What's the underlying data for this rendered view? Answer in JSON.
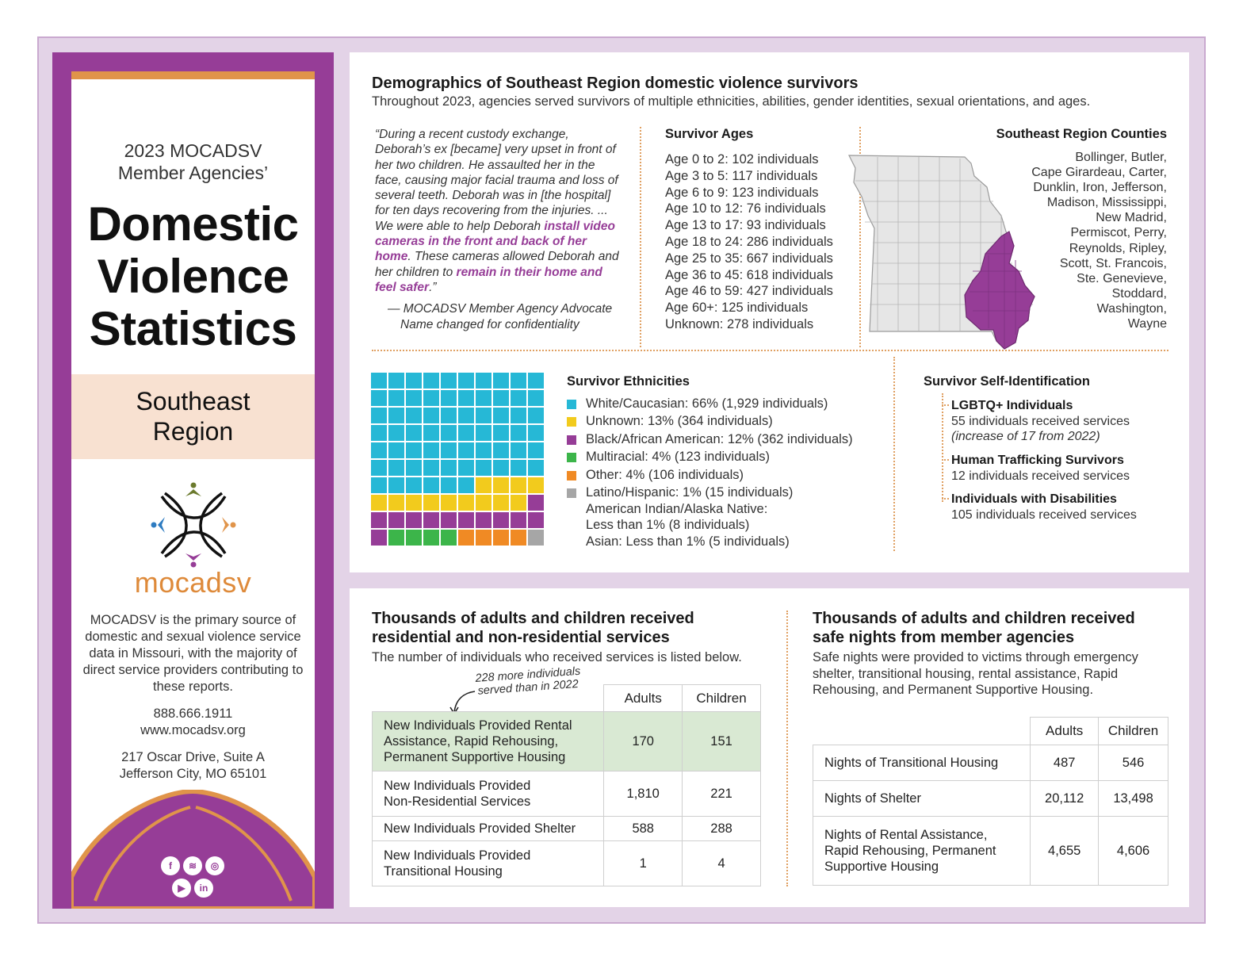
{
  "sidebar": {
    "subtitle_line1": "2023 MOCADSV",
    "subtitle_line2": "Member Agencies’",
    "title_line1": "Domestic",
    "title_line2": "Violence",
    "title_line3": "Statistics",
    "region_line1": "Southeast",
    "region_line2": "Region",
    "logo_text": "mocadsv",
    "description": "MOCADSV is the primary source of domestic and sexual violence service data in Missouri, with the majority of direct service providers contributing to these reports.",
    "phone": "888.666.1911",
    "website": "www.mocadsv.org",
    "address_line1": "217 Oscar Drive, Suite A",
    "address_line2": "Jefferson City, MO 65101",
    "social_icons": [
      "facebook-icon",
      "spotify-icon",
      "instagram-icon",
      "youtube-icon",
      "linkedin-icon"
    ],
    "colors": {
      "purple": "#963d97",
      "orange": "#e0944a",
      "peach": "#f8e1d1"
    }
  },
  "demographics": {
    "title": "Demographics of Southeast Region domestic violence survivors",
    "subtitle": "Throughout 2023, agencies served survivors of multiple ethnicities, abilities, gender identities, sexual orientations, and ages.",
    "quote": {
      "part1": "“During a recent custody exchange, Deborah’s ex [became] very upset in front of her two children. He assaulted her in the face, causing major facial trauma and loss of several teeth. Deborah was in [the hospital] for ten days recovering from the injuries. ... We were able to help Deborah ",
      "highlight1": "install video cameras in the front and back of her home",
      "part2": ". These cameras allowed Deborah and her children to ",
      "highlight2": "remain in their home and feel safer",
      "part3": ".”",
      "attribution_line1": "— MOCADSV Member Agency Advocate",
      "attribution_line2": "Name changed for confidentiality"
    },
    "ages": {
      "title": "Survivor Ages",
      "items": [
        "Age 0 to 2: 102 individuals",
        "Age 3 to 5: 117 individuals",
        "Age 6 to 9: 123 individuals",
        "Age 10 to 12: 76 individuals",
        "Age 13 to 17: 93 individuals",
        "Age 18 to 24: 286 individuals",
        "Age 25 to 35: 667 individuals",
        "Age 36 to 45: 618 individuals",
        "Age 46 to 59: 427 individuals",
        "Age 60+: 125 individuals",
        "Unknown: 278 individuals"
      ]
    },
    "counties": {
      "title": "Southeast Region Counties",
      "lines": [
        "Bollinger, Butler,",
        "Cape Girardeau, Carter,",
        "Dunklin, Iron, Jefferson,",
        "Madison, Mississippi,",
        "New Madrid,",
        "Permiscot, Perry,",
        "Reynolds, Ripley,",
        "Scott, St. Francois,",
        "Ste. Genevieve,",
        "Stoddard,",
        "Washington,",
        "Wayne"
      ]
    },
    "ethnicities": {
      "title": "Survivor Ethnicities",
      "items": [
        {
          "label": "White/Caucasian: 66% (1,929 individuals)",
          "color": "#26b8d6",
          "squares": 66
        },
        {
          "label": "Unknown: 13% (364 individuals)",
          "color": "#f2cb1d",
          "squares": 13
        },
        {
          "label": "Black/African American: 12% (362 individuals)",
          "color": "#963d97",
          "squares": 12
        },
        {
          "label": "Multiracial: 4% (123 individuals)",
          "color": "#3cb54a",
          "squares": 4
        },
        {
          "label": "Other: 4% (106 individuals)",
          "color": "#f08a24",
          "squares": 4
        },
        {
          "label": "Latino/Hispanic: 1% (15 individuals)",
          "color": "#a6a6a6",
          "squares": 1
        }
      ],
      "extra_line1": "American Indian/Alaska Native:",
      "extra_line2": "Less than 1% (8 individuals)",
      "extra_line3": "Asian: Less than 1% (5 individuals)"
    },
    "self_identification": {
      "title": "Survivor Self-Identification",
      "items": [
        {
          "title": "LGBTQ+ Individuals",
          "detail": "55 individuals received services",
          "note": "(increase of 17 from 2022)"
        },
        {
          "title": "Human Trafficking Survivors",
          "detail": "12 individuals received services"
        },
        {
          "title": "Individuals with Disabilities",
          "detail": "105 individuals received services"
        }
      ]
    }
  },
  "services": {
    "title_line1": "Thousands of adults and children received",
    "title_line2": "residential and non-residential services",
    "subtitle": "The number of individuals who received services is listed below.",
    "note_line1": "228 more individuals",
    "note_line2": "served than in 2022",
    "col_adults": "Adults",
    "col_children": "Children",
    "rows": [
      {
        "label_line1": "New Individuals Provided Rental",
        "label_line2": "Assistance, Rapid Rehousing,",
        "label_line3": "Permanent Supportive Housing",
        "adults": "170",
        "children": "151"
      },
      {
        "label_line1": "New Individuals Provided",
        "label_line2": "Non-Residential Services",
        "adults": "1,810",
        "children": "221"
      },
      {
        "label_line1": "New Individuals Provided Shelter",
        "adults": "588",
        "children": "288"
      },
      {
        "label_line1": "New Individuals Provided",
        "label_line2": "Transitional Housing",
        "adults": "1",
        "children": "4"
      }
    ]
  },
  "safe_nights": {
    "title_line1": "Thousands of adults and children received",
    "title_line2": "safe nights from member agencies",
    "subtitle_line1": "Safe nights were provided to victims through emergency",
    "subtitle_line2": "shelter, transitional housing, rental assistance, Rapid",
    "subtitle_line3": "Rehousing, and Permanent Supportive Housing.",
    "col_adults": "Adults",
    "col_children": "Children",
    "rows": [
      {
        "label_line1": "Nights of Transitional Housing",
        "adults": "487",
        "children": "546"
      },
      {
        "label_line1": "Nights of Shelter",
        "adults": "20,112",
        "children": "13,498"
      },
      {
        "label_line1": "Nights of Rental Assistance,",
        "label_line2": "Rapid Rehousing, Permanent",
        "label_line3": "Supportive Housing",
        "adults": "4,655",
        "children": "4,606"
      }
    ]
  }
}
